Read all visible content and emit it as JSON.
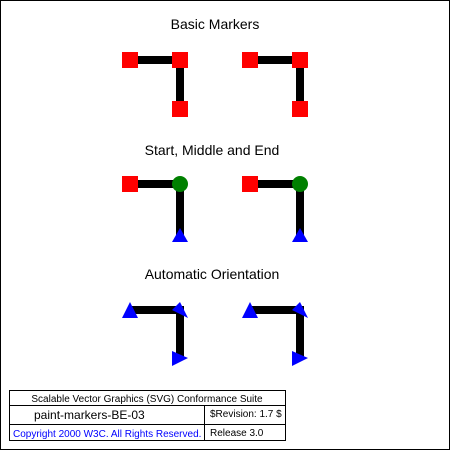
{
  "sections": {
    "basic_title": "Basic Markers",
    "start_middle_end_title": "Start, Middle and End",
    "auto_orient_title": "Automatic Orientation"
  },
  "footer": {
    "suite_title": "Scalable Vector Graphics (SVG) Conformance Suite",
    "test_name": "paint-markers-BE-03",
    "revision": "$Revision: 1.7 $",
    "copyright": "Copyright 2000 W3C. All Rights Reserved.",
    "release": "Release 3.0"
  },
  "colors": {
    "stroke": "#000000",
    "square_marker": "#ff0000",
    "circle_marker": "#008000",
    "triangle_marker": "#0000ff",
    "copyright_text": "#0000ff"
  }
}
